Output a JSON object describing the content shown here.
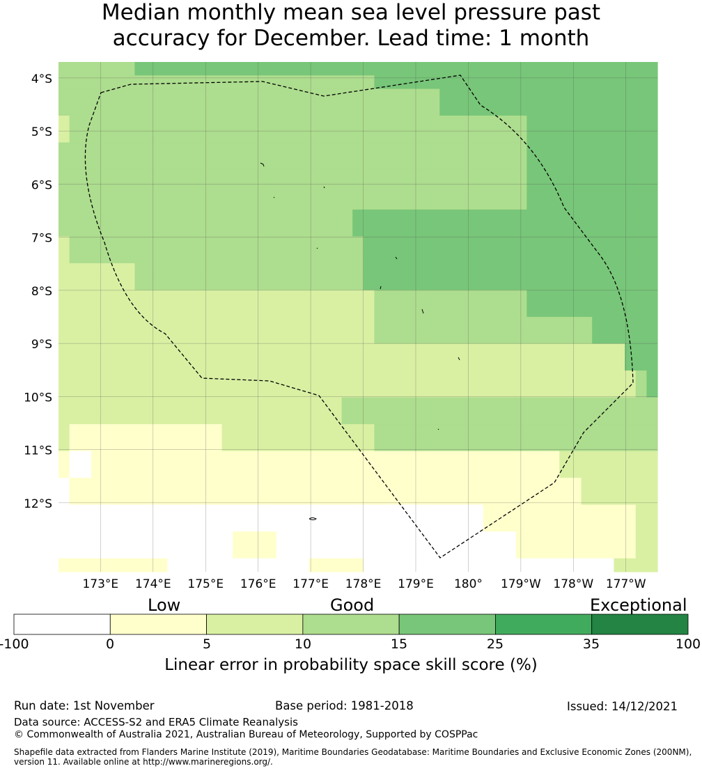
{
  "title_line1": "Median monthly mean sea level pressure past",
  "title_line2": "accuracy for December. Lead time: 1 month",
  "chart_data": {
    "type": "heatmap",
    "lon_range": [
      172.2,
      183.6
    ],
    "lat_range": [
      -13.3,
      -3.7
    ],
    "cell_size_deg": [
      0.83,
      0.56
    ],
    "lat_labels": [
      "4°S",
      "5°S",
      "6°S",
      "7°S",
      "8°S",
      "9°S",
      "10°S",
      "11°S",
      "12°S"
    ],
    "lat_values": [
      -4,
      -5,
      -6,
      -7,
      -8,
      -9,
      -10,
      -11,
      -12
    ],
    "lon_labels": [
      "173°E",
      "174°E",
      "175°E",
      "176°E",
      "177°E",
      "178°E",
      "179°E",
      "180°",
      "179°W",
      "178°W",
      "177°W"
    ],
    "lon_values": [
      173,
      174,
      175,
      176,
      177,
      178,
      179,
      180,
      181,
      182,
      183
    ],
    "grid_note": "row 0 = top (north); values are skill-score category: 0=<0 (white), 1=0-5, 2=5-10, 3=10-15, 4=15-25",
    "grid": [
      "3333333444444444444444444444444444444444444444444444444",
      "3333333333333333333333333333344444444444444444444444444",
      "3333333333333333333333333333333333344444444444444444444",
      "3333333333333333333333333333333333344444444444444444444",
      "2333333333333333333333333333333333333333333444444444444",
      "2333333333333333333333333333333333333333333444444444444",
      "3333333333333333333333333333333333333333333444444444444",
      "3333333333333333333333333333333333333333333444444444444",
      "3333333333333333333333333333333333333333333444444444444",
      "3333333333333333333333333333333333333333333444444444444",
      "3333333333333333333333333333333333333333333444444444444",
      "3333333333333333333333333334444444444444444444444444444",
      "3333333333333333333333333334444444444444444444444444444",
      "2333333333333333333333333333444444444444444444444444444",
      "2333333333333333333333333333444444444444444444444444444",
      "2222222333333333333333333333444444444444444444444444444",
      "2222222333333333333333333333444444444444444444444444444",
      "2222222222222222222222222222233333333333333444444444444",
      "2222222222222222222222222222233333333333333444444444444",
      "2222222222222222222222222222233333333333333333333444444",
      "2222222222222222222222222222233333333333333333333444444",
      "2222222222222222222222222222222222222222222222222222444",
      "2222222222222222222222222222222222222222222222222222444",
      "2222222222222222222222222222222222222222222222222222234",
      "2222222222222222222222222222222222222222222222222222234",
      "2222222222222222222222222233333333333333333333333333333",
      "2222222222222222222222222233333333333333333333333333333",
      "2111111111111112222222222222233333333333333333333333333",
      "2111111111111112222222222222233333333333333333333333333",
      "1001111111111111111111111111111111111111111111222222222",
      "1001111111111111111111111111111111111111111111222222222",
      "0111111111111111111111111111111111111111111111112222222",
      "0111111111111111111111111111111111111111111111112222222",
      "0000000000000000000000000000000000000001111111111111122",
      "0000000000000000000000000000000000000001111111111111122",
      "0000000000000000111100000000000000000000001111111111122",
      "0000000000000000111100000000000000000000001111111111122",
      "1111111111000000000000011111000000000000000000000002222"
    ],
    "legend": {
      "categories": [
        "Low",
        "Good",
        "Exceptional"
      ],
      "boundaries": [
        "-100",
        "0",
        "5",
        "10",
        "15",
        "25",
        "35",
        "100"
      ],
      "colors": [
        "#ffffff",
        "#ffffcc",
        "#d9f0a3",
        "#addd8e",
        "#78c679",
        "#41ab5d",
        "#238443"
      ],
      "title": "Linear error in probability space skill score (%)"
    }
  },
  "footer": {
    "run_date": "Run date: 1st November",
    "base_period": "Base period: 1981-2018",
    "issued": "Issued: 14/12/2021",
    "data_source": "Data source: ACCESS-S2 and ERA5 Climate Reanalysis",
    "copyright": "© Commonwealth of Australia 2021, Australian Bureau of Meteorology, Supported by COSPPac",
    "shapefile_line1": "Shapefile data extracted from Flanders Marine Institute (2019), Maritime Boundaries Geodatabase: Maritime Boundaries and Exclusive Economic Zones (200NM),",
    "shapefile_line2": "version 11. Available online at http://www.marineregions.org/."
  }
}
